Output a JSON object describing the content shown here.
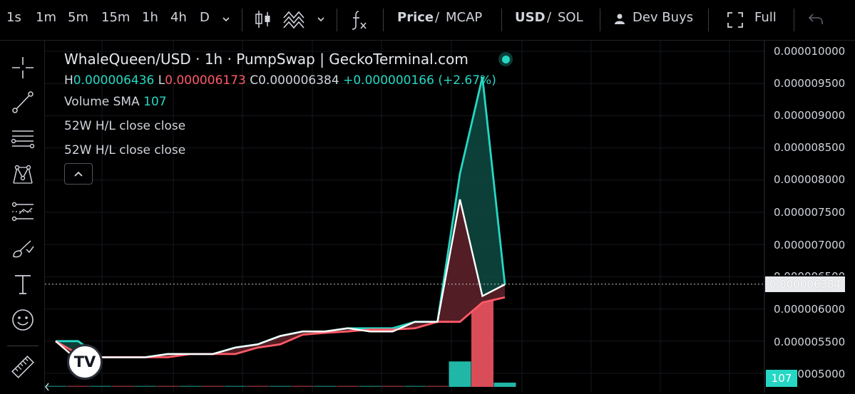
{
  "toolbar": {
    "intervals": [
      "1s",
      "1m",
      "5m",
      "15m",
      "1h",
      "4h",
      "D"
    ],
    "price_label": "Price",
    "mcap_label": "MCAP",
    "usd_label": "USD",
    "sol_label": "SOL",
    "dev_buys_label": "Dev Buys",
    "full_label": "Full",
    "slash": "/"
  },
  "legend": {
    "title": "WhaleQueen/USD · 1h · PumpSwap | GeckoTerminal.com",
    "h_label": "H",
    "h_value": "0.000006436",
    "l_label": "L",
    "l_value": "0.000006173",
    "c_label": "C",
    "c_value": "0.000006384",
    "change": "+0.000000166 (+2.67%)",
    "volume_label": "Volume SMA",
    "volume_value": "107",
    "indicator1": "52W H/L close close",
    "indicator2": "52W H/L close close"
  },
  "colors": {
    "up": "#26d7c4",
    "down": "#ff5a67",
    "background": "#000000"
  },
  "axis": {
    "ticks": [
      "0.000010000",
      "0.000009500",
      "0.000009000",
      "0.000008500",
      "0.000008000",
      "0.000007500",
      "0.000007000",
      "0.000006500",
      "0.000006000",
      "0.000005500",
      "0.000005000"
    ],
    "current_price": "0.000006384",
    "volume_badge": "107"
  },
  "chart_data": {
    "type": "line",
    "ylim": [
      5e-06,
      1e-05
    ],
    "series": [
      {
        "values": [
          5.5e-06,
          5.5e-06,
          5.25e-06,
          5.25e-06,
          5.25e-06,
          5.3e-06,
          5.3e-06,
          5.3e-06,
          5.4e-06,
          5.45e-06,
          5.58e-06,
          5.65e-06,
          5.65e-06,
          5.7e-06,
          5.7e-06,
          5.7e-06,
          5.8e-06,
          5.8e-06,
          8.1e-06,
          9.6e-06,
          6.38e-06
        ]
      },
      {
        "values": [
          5.5e-06,
          5.2e-06,
          5.25e-06,
          5.25e-06,
          5.25e-06,
          5.3e-06,
          5.3e-06,
          5.3e-06,
          5.4e-06,
          5.45e-06,
          5.58e-06,
          5.65e-06,
          5.65e-06,
          5.7e-06,
          5.65e-06,
          5.65e-06,
          5.8e-06,
          5.8e-06,
          7.7e-06,
          6.2e-06,
          6.38e-06
        ]
      },
      {
        "values": [
          5.5e-06,
          5.3e-06,
          5.25e-06,
          5.25e-06,
          5.25e-06,
          5.25e-06,
          5.3e-06,
          5.3e-06,
          5.3e-06,
          5.4e-06,
          5.45e-06,
          5.6e-06,
          5.63e-06,
          5.65e-06,
          5.68e-06,
          5.68e-06,
          5.7e-06,
          5.8e-06,
          5.8e-06,
          6.1e-06,
          6.18e-06
        ]
      }
    ],
    "volume": [
      0,
      0,
      0,
      0,
      0,
      0,
      0,
      0,
      0,
      0,
      0,
      0,
      0,
      0,
      0,
      0,
      0,
      0,
      18,
      62,
      3
    ],
    "volume_colors": [
      "up",
      "down",
      "up",
      "down",
      "up",
      "down",
      "up",
      "down",
      "up",
      "down",
      "up",
      "down",
      "up",
      "down",
      "up",
      "down",
      "up",
      "down",
      "up",
      "down",
      "up"
    ]
  }
}
